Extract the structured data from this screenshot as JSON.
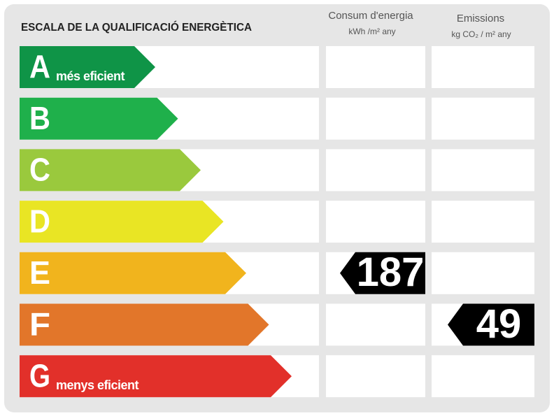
{
  "title": "ESCALA DE LA QUALIFICACIÓ ENERGÈTICA",
  "energy": {
    "title": "Consum d'energia",
    "unit": "kWh /m² any",
    "value": 187,
    "rating": "E"
  },
  "emissions": {
    "title": "Emissions",
    "unit": "kg CO₂ / m² any",
    "value": 49,
    "rating": "F"
  },
  "ratings": [
    {
      "letter": "A",
      "label": "més eficient",
      "color": "#0f9447"
    },
    {
      "letter": "B",
      "color": "#1fb04b"
    },
    {
      "letter": "C",
      "color": "#9ac93d"
    },
    {
      "letter": "D",
      "color": "#e9e524"
    },
    {
      "letter": "E",
      "color": "#f1b41d"
    },
    {
      "letter": "F",
      "color": "#e2762a"
    },
    {
      "letter": "G",
      "label": "menys eficient",
      "color": "#e2302a"
    }
  ]
}
